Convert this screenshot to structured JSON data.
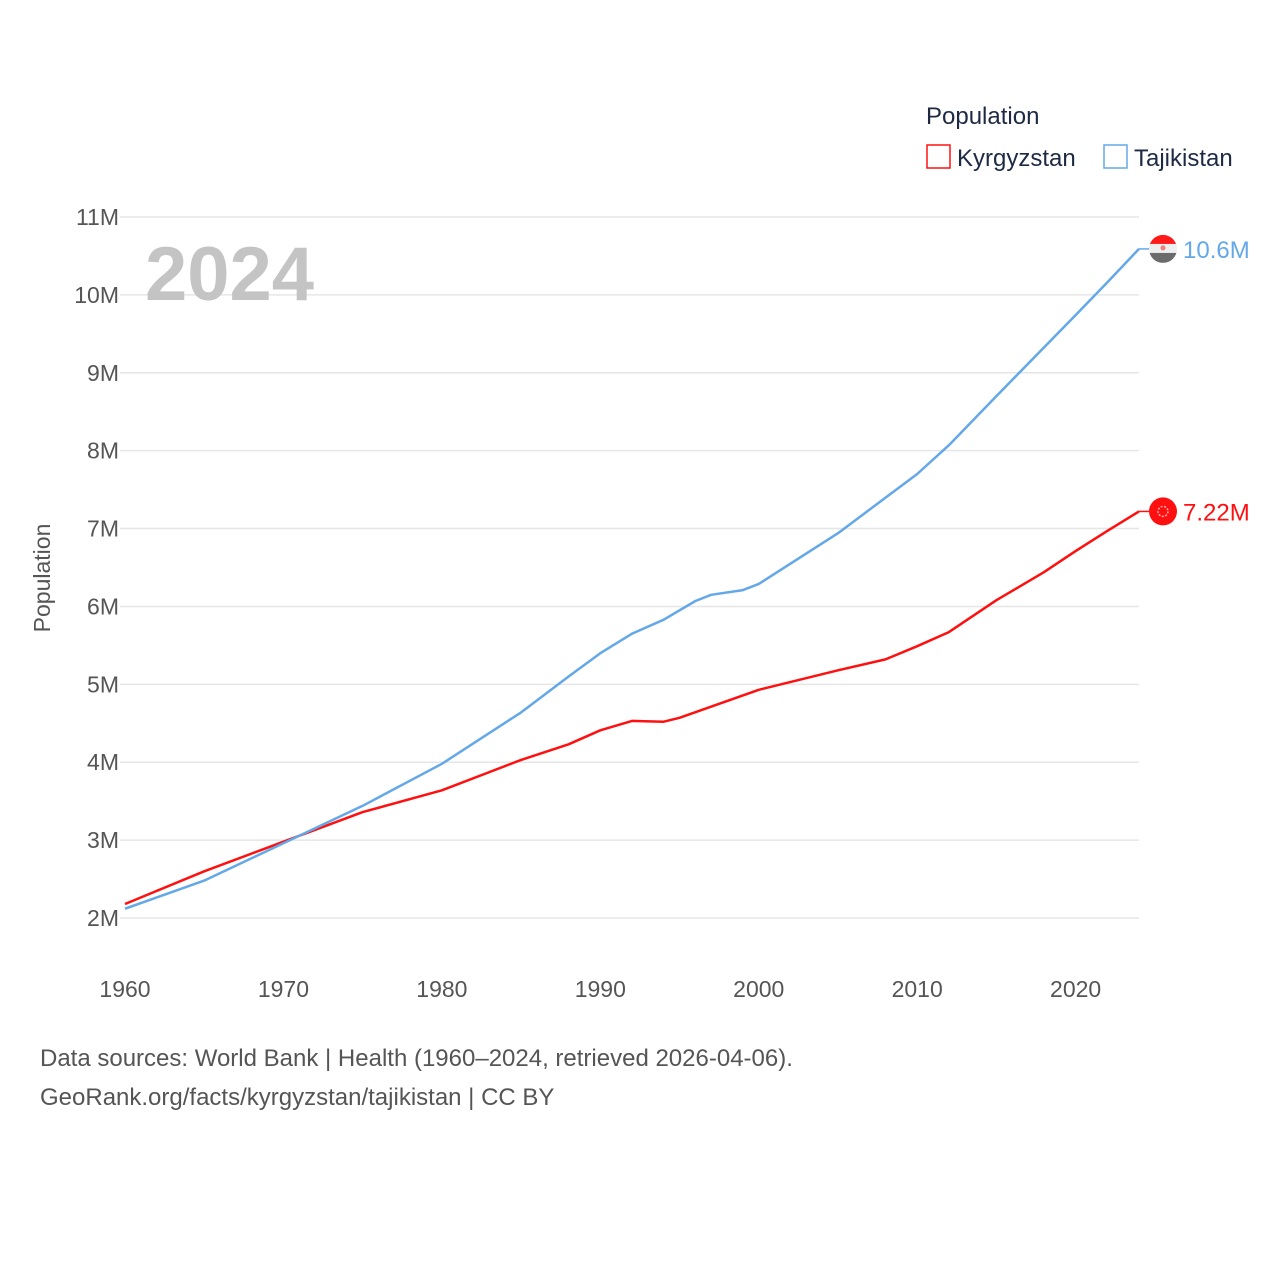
{
  "chart_data": {
    "type": "line",
    "year_label": "2024",
    "ylabel": "Population",
    "legend": {
      "title": "Population",
      "placement": "top-right"
    },
    "ylim": [
      2000000,
      11000000
    ],
    "xlim": [
      1960,
      2024
    ],
    "y_ticks": [
      {
        "value": 2000000,
        "label": "2M"
      },
      {
        "value": 3000000,
        "label": "3M"
      },
      {
        "value": 4000000,
        "label": "4M"
      },
      {
        "value": 5000000,
        "label": "5M"
      },
      {
        "value": 6000000,
        "label": "6M"
      },
      {
        "value": 7000000,
        "label": "7M"
      },
      {
        "value": 8000000,
        "label": "8M"
      },
      {
        "value": 9000000,
        "label": "9M"
      },
      {
        "value": 10000000,
        "label": "10M"
      },
      {
        "value": 11000000,
        "label": "11M"
      }
    ],
    "x_ticks": [
      {
        "value": 1960,
        "label": "1960"
      },
      {
        "value": 1970,
        "label": "1970"
      },
      {
        "value": 1980,
        "label": "1980"
      },
      {
        "value": 1990,
        "label": "1990"
      },
      {
        "value": 2000,
        "label": "2000"
      },
      {
        "value": 2010,
        "label": "2010"
      },
      {
        "value": 2020,
        "label": "2020"
      }
    ],
    "series": [
      {
        "name": "Kyrgyzstan",
        "color": "#ff1010",
        "end_label": "7.22M",
        "x": [
          1960,
          1965,
          1970,
          1975,
          1980,
          1985,
          1988,
          1990,
          1992,
          1994,
          1995,
          2000,
          2005,
          2008,
          2010,
          2012,
          2015,
          2018,
          2020,
          2022,
          2024
        ],
        "values": [
          2.18,
          2.6,
          2.98,
          3.36,
          3.64,
          4.03,
          4.23,
          4.41,
          4.53,
          4.52,
          4.57,
          4.93,
          5.18,
          5.32,
          5.49,
          5.67,
          6.08,
          6.44,
          6.71,
          6.97,
          7.22
        ]
      },
      {
        "name": "Tajikistan",
        "color": "#64a8e8",
        "end_label": "10.6M",
        "x": [
          1960,
          1965,
          1970,
          1975,
          1980,
          1985,
          1988,
          1990,
          1992,
          1994,
          1996,
          1997,
          1999,
          2000,
          2005,
          2010,
          2012,
          2015,
          2020,
          2022,
          2024
        ],
        "values": [
          2.12,
          2.48,
          2.96,
          3.44,
          3.98,
          4.64,
          5.1,
          5.4,
          5.65,
          5.83,
          6.07,
          6.15,
          6.21,
          6.29,
          6.94,
          7.7,
          8.07,
          8.7,
          9.74,
          10.16,
          10.59
        ]
      }
    ],
    "value_unit": "millions"
  },
  "footer": {
    "line1": "Data sources: World Bank | Health (1960–2024, retrieved 2026-04-06).",
    "line2": "GeoRank.org/facts/kyrgyzstan/tajikistan | CC BY"
  }
}
